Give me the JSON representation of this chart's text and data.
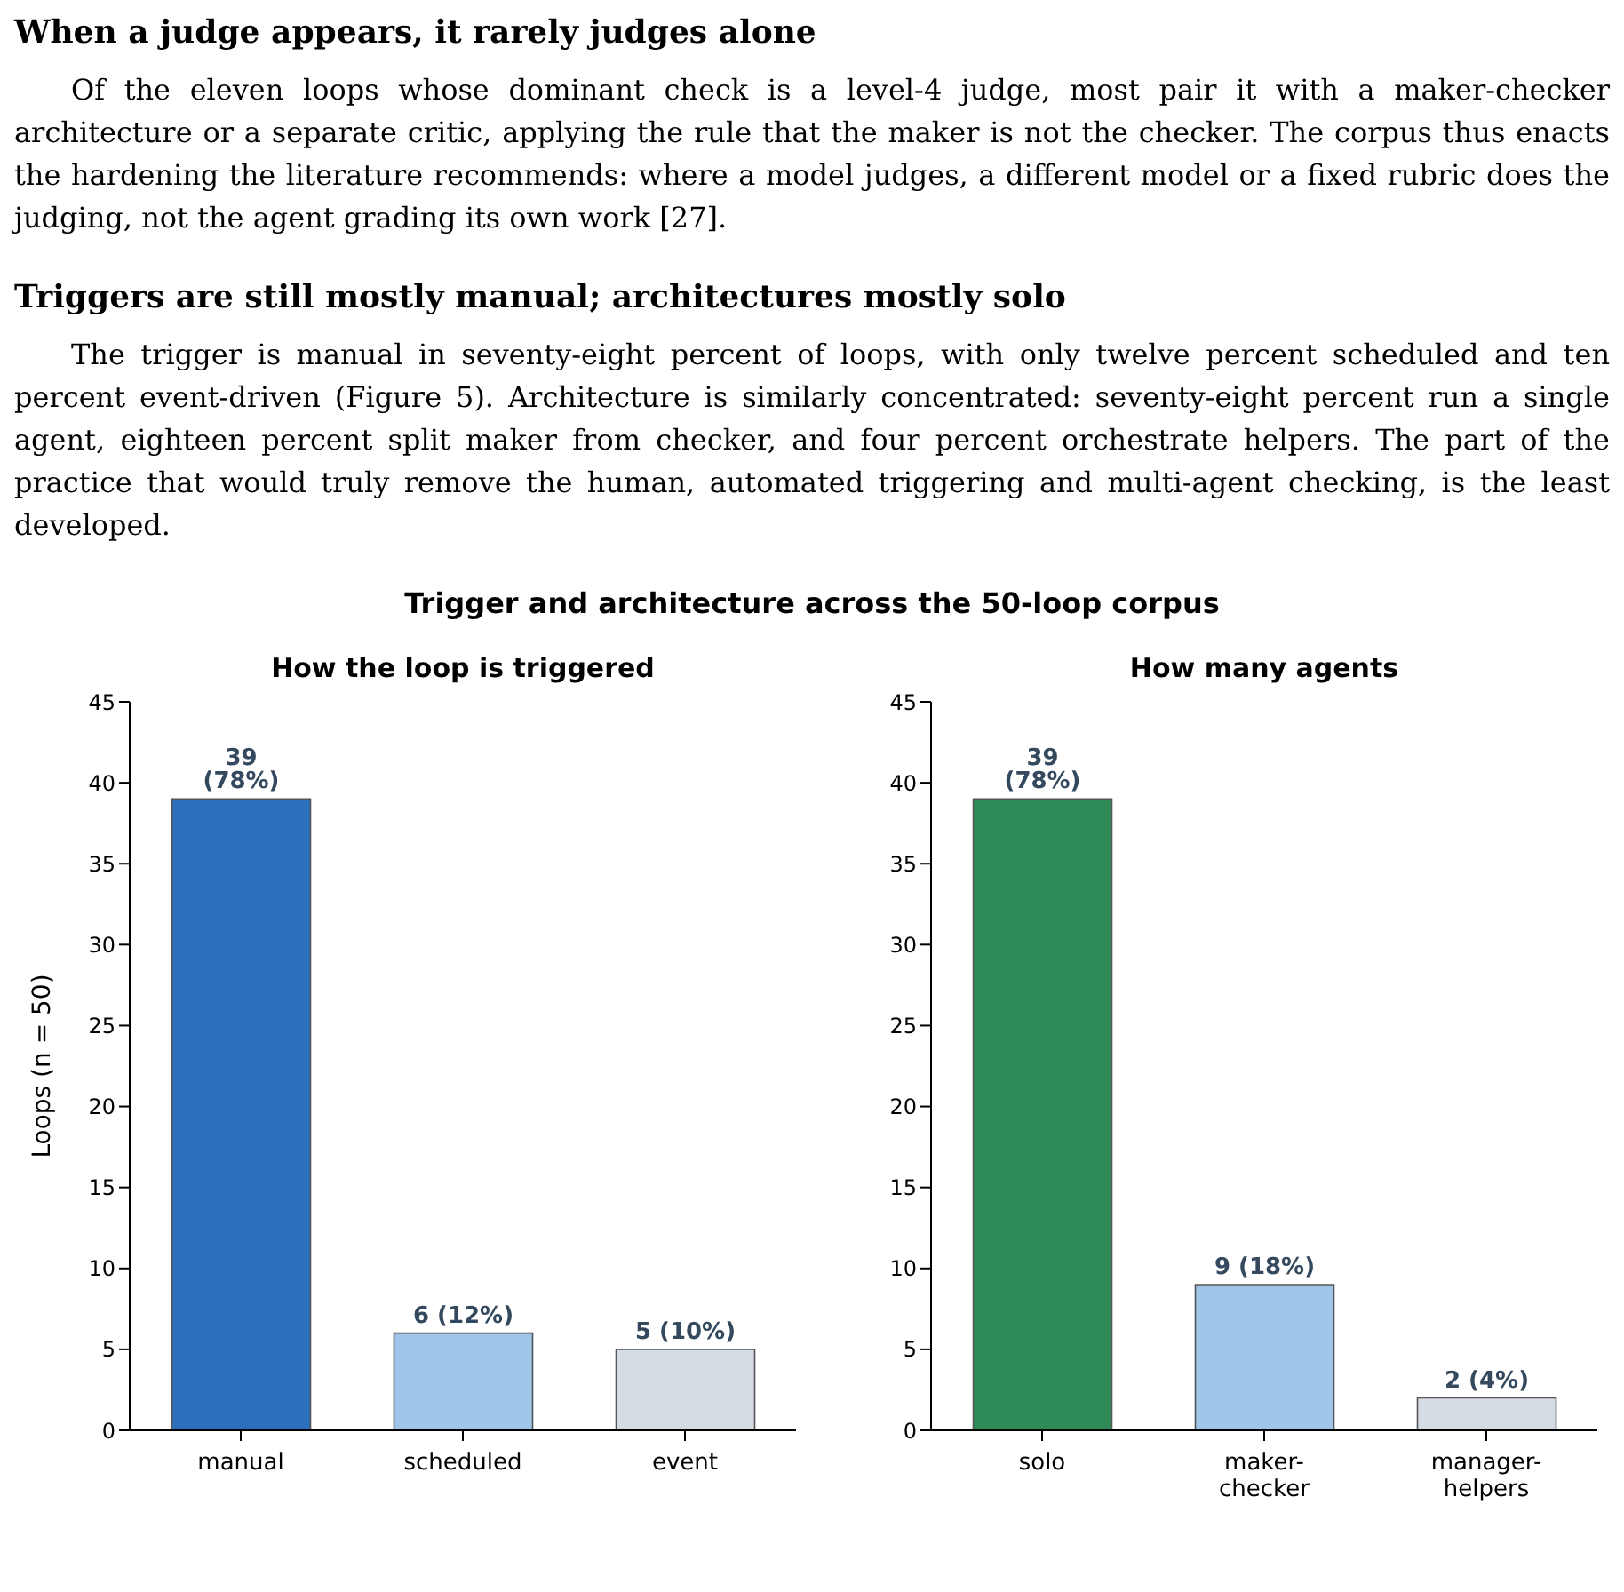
{
  "chart_data": [
    {
      "type": "bar",
      "title": "How the loop is triggered",
      "ylabel": "Loops (n = 50)",
      "annotations": [
        "When a judge appears, it rarely judges alone",
        "Of the eleven loops whose dominant check is a level-4 judge, most pair it with a maker-checker architecture or a separate critic, applying the rule that the maker is not the checker. The corpus thus enacts the hardening the literature recommends: where a model judges, a different model or a fixed rubric does the judging, not the agent grading its own work [27].",
        "Triggers are still mostly manual; architectures mostly solo",
        "The trigger is manual in seventy-eight percent of loops, with only twelve percent scheduled and ten percent event-driven (Figure 5). Architecture is similarly concentrated: seventy-eight percent run a single agent, eighteen percent split maker from checker, and four percent orchestrate helpers. The part of the practice that would truly remove the human, automated triggering and multi-agent checking, is the least developed.",
        "Trigger and architecture across the 50-loop corpus"
      ],
      "categories": [
        "manual",
        "scheduled",
        "event"
      ],
      "values": [
        39,
        6,
        5
      ],
      "colors": [
        "#2b6fbd",
        "#9fc5e8",
        "#d5dce4"
      ],
      "value_labels": [
        "39  (78%)",
        "6  (12%)",
        "5  (10%)"
      ],
      "ylim": [
        0,
        45
      ],
      "yticks": [
        0,
        5,
        10,
        15,
        20,
        25,
        30,
        35,
        40,
        45
      ]
    },
    {
      "type": "bar",
      "title": "How many agents",
      "categories": [
        "solo",
        "maker-\nchecker",
        "manager-\nhelpers"
      ],
      "values": [
        39,
        9,
        2
      ],
      "colors": [
        "#2e8b57",
        "#9fc5e8",
        "#d5dce4"
      ],
      "value_labels": [
        "39  (78%)",
        "9  (18%)",
        "2  (4%)"
      ],
      "ylim": [
        0,
        45
      ],
      "yticks": [
        0,
        5,
        10,
        15,
        20,
        25,
        30,
        35,
        40,
        45
      ]
    }
  ]
}
